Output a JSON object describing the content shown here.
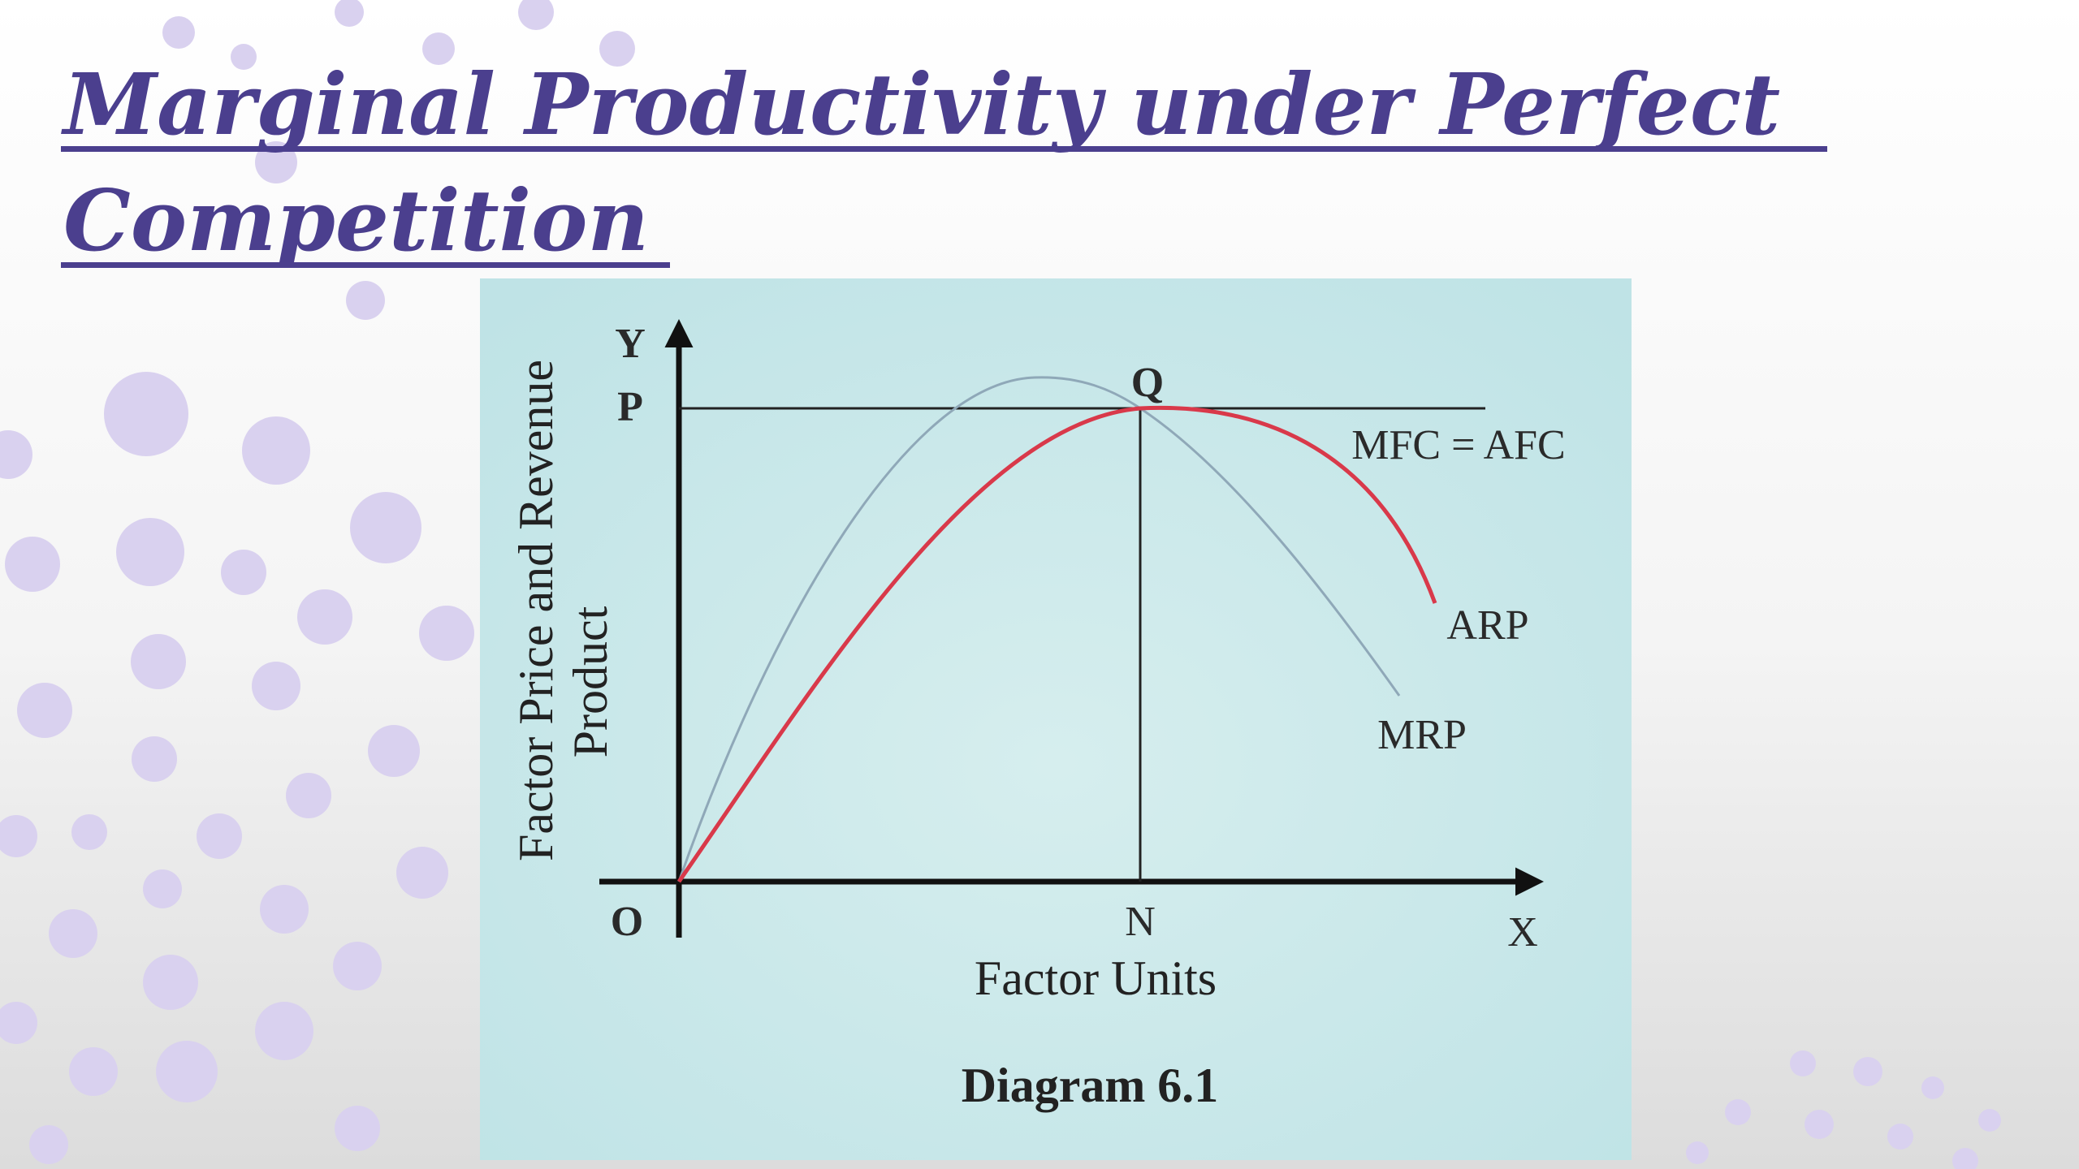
{
  "header": {
    "title_line_1": "Marginal Productivity under Perfect",
    "title_line_2": "Competition"
  },
  "diagram": {
    "y_label": "Y",
    "p_label": "P",
    "q_label": "Q",
    "mfc_afc_label": "MFC = AFC",
    "arp_label": "ARP",
    "mrp_label": "MRP",
    "origin_label": "O",
    "n_label": "N",
    "x_label": "X",
    "x_axis_title": "Factor Units",
    "y_axis_title_line_1": "Factor Price and Revenue",
    "y_axis_title_line_2": "Product",
    "caption": "Diagram 6.1"
  }
}
